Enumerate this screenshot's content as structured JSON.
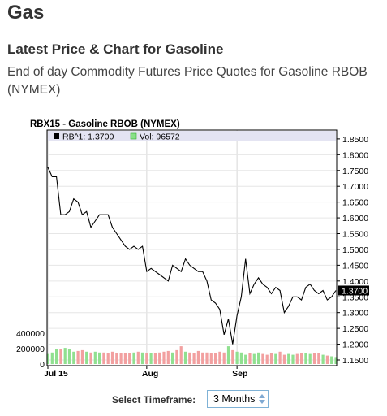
{
  "page": {
    "title": "Gas",
    "subtitle": "Latest Price & Chart for Gasoline",
    "description": "End of day Commodity Futures Price Quotes for Gasoline RBOB (NYMEX)"
  },
  "chart_data": {
    "type": "line",
    "title": "RBX15 - Gasoline RBOB (NYMEX)",
    "legend": [
      {
        "label": "RB^1: 1.3700",
        "color": "#000000"
      },
      {
        "label": "Vol: 96572",
        "color": "#88e088"
      }
    ],
    "last_price_label": "1.3700",
    "price_ticks": [
      "1.8500",
      "1.8000",
      "1.7500",
      "1.7000",
      "1.6500",
      "1.6000",
      "1.5500",
      "1.5000",
      "1.4500",
      "1.4000",
      "1.3500",
      "1.3000",
      "1.2500",
      "1.2000",
      "1.1500"
    ],
    "volume_ticks": [
      "400000",
      "200000",
      "0"
    ],
    "x_labels": [
      "Jul 15",
      "Aug",
      "Sep"
    ],
    "price_ylim": [
      1.15,
      1.86
    ],
    "volume_ylim": [
      0,
      400000
    ],
    "prices": [
      1.76,
      1.73,
      1.73,
      1.61,
      1.61,
      1.62,
      1.66,
      1.65,
      1.61,
      1.62,
      1.57,
      1.59,
      1.61,
      1.61,
      1.61,
      1.57,
      1.55,
      1.53,
      1.51,
      1.5,
      1.51,
      1.5,
      1.51,
      1.43,
      1.44,
      1.43,
      1.42,
      1.41,
      1.4,
      1.45,
      1.44,
      1.43,
      1.47,
      1.45,
      1.44,
      1.43,
      1.43,
      1.4,
      1.34,
      1.33,
      1.31,
      1.23,
      1.28,
      1.2,
      1.29,
      1.35,
      1.47,
      1.36,
      1.39,
      1.41,
      1.39,
      1.38,
      1.36,
      1.38,
      1.37,
      1.3,
      1.32,
      1.35,
      1.35,
      1.34,
      1.38,
      1.39,
      1.37,
      1.36,
      1.37,
      1.34,
      1.35,
      1.37
    ],
    "volumes": [
      130000,
      150000,
      190000,
      200000,
      210000,
      190000,
      160000,
      170000,
      180000,
      160000,
      150000,
      160000,
      150000,
      150000,
      140000,
      160000,
      140000,
      140000,
      140000,
      140000,
      150000,
      160000,
      150000,
      140000,
      140000,
      140000,
      150000,
      160000,
      170000,
      150000,
      180000,
      230000,
      160000,
      150000,
      140000,
      170000,
      150000,
      150000,
      140000,
      140000,
      160000,
      150000,
      230000,
      180000,
      160000,
      150000,
      120000,
      140000,
      130000,
      150000,
      130000,
      120000,
      140000,
      130000,
      160000,
      120000,
      130000,
      120000,
      130000,
      140000,
      140000,
      130000,
      140000,
      140000,
      120000,
      110000,
      100000,
      90000
    ],
    "down_days": [
      false,
      false,
      false,
      true,
      false,
      false,
      false,
      true,
      true,
      false,
      true,
      false,
      false,
      true,
      true,
      true,
      true,
      true,
      true,
      true,
      false,
      true,
      false,
      true,
      false,
      true,
      true,
      true,
      true,
      false,
      true,
      true,
      false,
      true,
      true,
      true,
      true,
      true,
      true,
      true,
      true,
      true,
      false,
      true,
      false,
      false,
      false,
      true,
      false,
      false,
      true,
      true,
      true,
      false,
      true,
      true,
      false,
      false,
      true,
      true,
      false,
      false,
      true,
      true,
      false,
      true,
      false,
      false
    ]
  },
  "timeframe": {
    "label": "Select Timeframe:",
    "selected": "3 Months"
  }
}
